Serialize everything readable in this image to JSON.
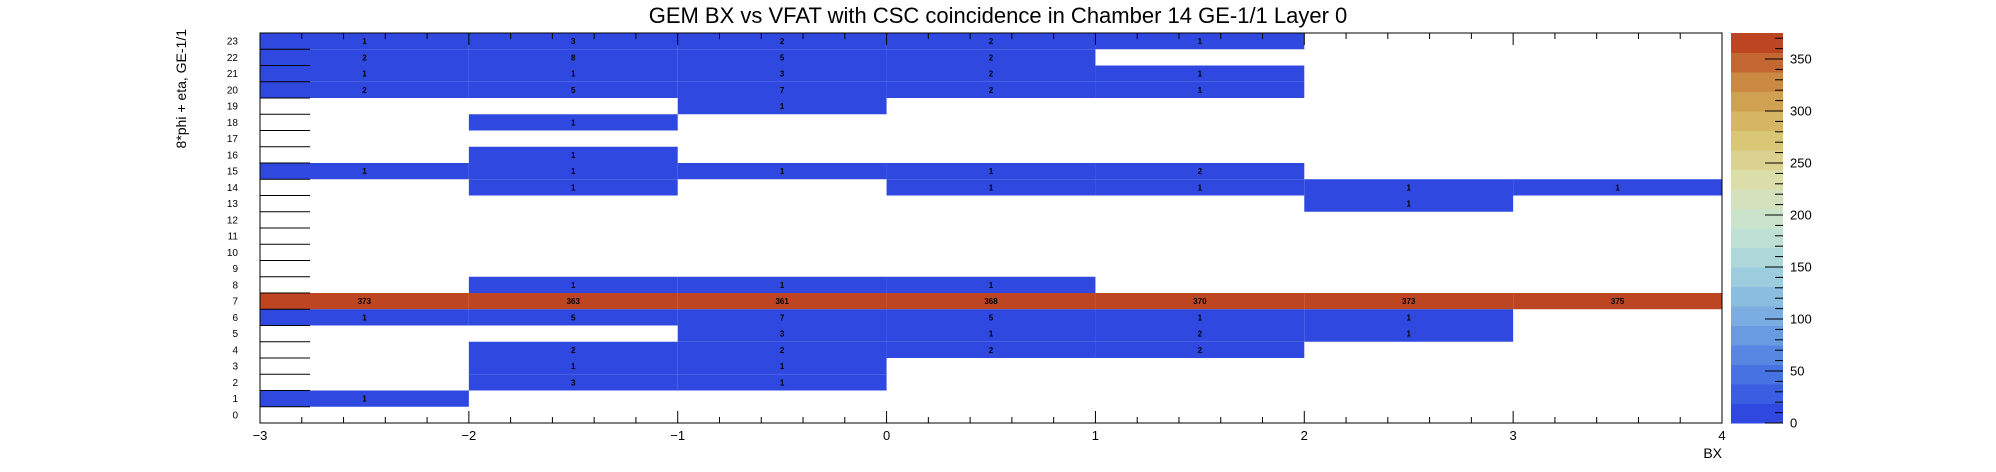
{
  "chart_data": {
    "type": "heatmap",
    "title": "GEM BX vs VFAT with CSC coincidence in Chamber 14 GE-1/1 Layer 0",
    "xlabel": "BX",
    "ylabel": "8*phi + eta, GE-1/1",
    "xlim": [
      -3,
      4
    ],
    "ylim": [
      0,
      24
    ],
    "x_ticks": [
      "−3",
      "−2",
      "−1",
      "0",
      "1",
      "2",
      "3",
      "4"
    ],
    "y_ticks": [
      "0",
      "1",
      "2",
      "3",
      "4",
      "5",
      "6",
      "7",
      "8",
      "9",
      "10",
      "11",
      "12",
      "13",
      "14",
      "15",
      "16",
      "17",
      "18",
      "19",
      "20",
      "21",
      "22",
      "23"
    ],
    "x_bins": [
      -2.5,
      -1.5,
      -0.5,
      0.5,
      1.5,
      2.5,
      3.5
    ],
    "colorbar": {
      "min": 0,
      "max": 375,
      "ticks": [
        "0",
        "50",
        "100",
        "150",
        "200",
        "250",
        "300",
        "350"
      ]
    },
    "colors": {
      "low": "#2f48e0",
      "high": "#bd4522"
    },
    "cells": [
      {
        "x": -2.5,
        "y": 23,
        "v": 1
      },
      {
        "x": -1.5,
        "y": 23,
        "v": 3
      },
      {
        "x": -0.5,
        "y": 23,
        "v": 2
      },
      {
        "x": 0.5,
        "y": 23,
        "v": 2
      },
      {
        "x": 1.5,
        "y": 23,
        "v": 1
      },
      {
        "x": -2.5,
        "y": 22,
        "v": 2
      },
      {
        "x": -1.5,
        "y": 22,
        "v": 8
      },
      {
        "x": -0.5,
        "y": 22,
        "v": 5
      },
      {
        "x": 0.5,
        "y": 22,
        "v": 2
      },
      {
        "x": -2.5,
        "y": 21,
        "v": 1
      },
      {
        "x": -1.5,
        "y": 21,
        "v": 1
      },
      {
        "x": -0.5,
        "y": 21,
        "v": 3
      },
      {
        "x": 0.5,
        "y": 21,
        "v": 2
      },
      {
        "x": 1.5,
        "y": 21,
        "v": 1
      },
      {
        "x": -2.5,
        "y": 20,
        "v": 2
      },
      {
        "x": -1.5,
        "y": 20,
        "v": 5
      },
      {
        "x": -0.5,
        "y": 20,
        "v": 7
      },
      {
        "x": 0.5,
        "y": 20,
        "v": 2
      },
      {
        "x": 1.5,
        "y": 20,
        "v": 1
      },
      {
        "x": -0.5,
        "y": 19,
        "v": 1
      },
      {
        "x": -1.5,
        "y": 18,
        "v": 1
      },
      {
        "x": -1.5,
        "y": 16,
        "v": 1
      },
      {
        "x": -2.5,
        "y": 15,
        "v": 1
      },
      {
        "x": -1.5,
        "y": 15,
        "v": 1
      },
      {
        "x": -0.5,
        "y": 15,
        "v": 1
      },
      {
        "x": 0.5,
        "y": 15,
        "v": 1
      },
      {
        "x": 1.5,
        "y": 15,
        "v": 2
      },
      {
        "x": -1.5,
        "y": 14,
        "v": 1
      },
      {
        "x": 0.5,
        "y": 14,
        "v": 1
      },
      {
        "x": 1.5,
        "y": 14,
        "v": 1
      },
      {
        "x": 2.5,
        "y": 14,
        "v": 1
      },
      {
        "x": 3.5,
        "y": 14,
        "v": 1
      },
      {
        "x": 2.5,
        "y": 13,
        "v": 1
      },
      {
        "x": -1.5,
        "y": 8,
        "v": 1
      },
      {
        "x": -0.5,
        "y": 8,
        "v": 1
      },
      {
        "x": 0.5,
        "y": 8,
        "v": 1
      },
      {
        "x": -2.5,
        "y": 7,
        "v": 373
      },
      {
        "x": -1.5,
        "y": 7,
        "v": 363
      },
      {
        "x": -0.5,
        "y": 7,
        "v": 361
      },
      {
        "x": 0.5,
        "y": 7,
        "v": 368
      },
      {
        "x": 1.5,
        "y": 7,
        "v": 370
      },
      {
        "x": 2.5,
        "y": 7,
        "v": 373
      },
      {
        "x": 3.5,
        "y": 7,
        "v": 375
      },
      {
        "x": -2.5,
        "y": 6,
        "v": 1
      },
      {
        "x": -1.5,
        "y": 6,
        "v": 5
      },
      {
        "x": -0.5,
        "y": 6,
        "v": 7
      },
      {
        "x": 0.5,
        "y": 6,
        "v": 5
      },
      {
        "x": 1.5,
        "y": 6,
        "v": 1
      },
      {
        "x": 2.5,
        "y": 6,
        "v": 1
      },
      {
        "x": -0.5,
        "y": 5,
        "v": 3
      },
      {
        "x": 0.5,
        "y": 5,
        "v": 1
      },
      {
        "x": 1.5,
        "y": 5,
        "v": 2
      },
      {
        "x": 2.5,
        "y": 5,
        "v": 1
      },
      {
        "x": -1.5,
        "y": 4,
        "v": 2
      },
      {
        "x": -0.5,
        "y": 4,
        "v": 2
      },
      {
        "x": 0.5,
        "y": 4,
        "v": 2
      },
      {
        "x": 1.5,
        "y": 4,
        "v": 2
      },
      {
        "x": -1.5,
        "y": 3,
        "v": 1
      },
      {
        "x": -0.5,
        "y": 3,
        "v": 1
      },
      {
        "x": -1.5,
        "y": 2,
        "v": 3
      },
      {
        "x": -0.5,
        "y": 2,
        "v": 1
      },
      {
        "x": -2.5,
        "y": 1,
        "v": 1
      }
    ]
  }
}
